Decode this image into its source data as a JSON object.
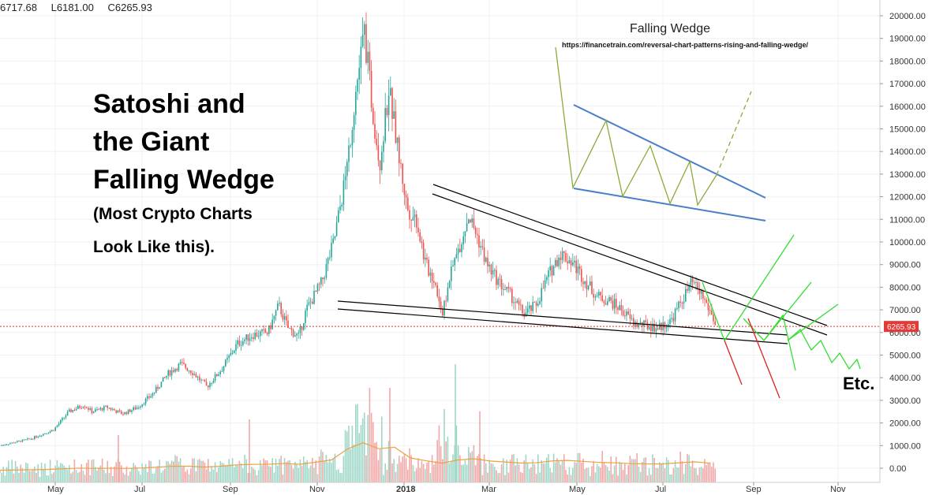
{
  "header": {
    "high": "6717.68",
    "low": "L6181.00",
    "close": "C6265.93"
  },
  "title": {
    "line1": "Satoshi and",
    "line2": "the Giant",
    "line3": "Falling Wedge",
    "sub1": "(Most Crypto Charts",
    "sub2": "Look Like this)."
  },
  "inset": {
    "title": "Falling Wedge",
    "url": "https://financetrain.com/reversal-chart-patterns-rising-and-falling-wedge/"
  },
  "annotation": {
    "etc": "Etc."
  },
  "price_label": "6265.93",
  "colors": {
    "up": "#26a69a",
    "down": "#ef5350",
    "price_line": "#e53935",
    "wedge_inset": "#4a7fc8",
    "zigzag": "#8aab3a",
    "projection_up": "#33dd33",
    "projection_down": "#dd2222",
    "trendline": "#000000",
    "volume_ma": "#f0a040"
  },
  "chart_data": {
    "type": "candlestick",
    "title": "",
    "xlabel": "",
    "ylabel": "",
    "ylim": [
      -500,
      20500
    ],
    "y_ticks": [
      "20000.00",
      "19000.00",
      "18000.00",
      "17000.00",
      "16000.00",
      "15000.00",
      "14000.00",
      "13000.00",
      "12000.00",
      "11000.00",
      "10000.00",
      "9000.00",
      "8000.00",
      "7000.00",
      "6000.00",
      "5000.00",
      "4000.00",
      "3000.00",
      "2000.00",
      "1000.00",
      "0.00"
    ],
    "x_ticks": [
      "May",
      "Jul",
      "Sep",
      "Nov",
      "2018",
      "Mar",
      "May",
      "Jul",
      "Sep",
      "Nov"
    ],
    "x_tick_bold": [
      false,
      false,
      false,
      false,
      true,
      false,
      false,
      false,
      false,
      false
    ],
    "timeline_days": [
      0,
      61,
      123,
      184,
      245,
      304,
      365,
      426,
      488,
      549
    ],
    "current_price": 6265.93,
    "price_path": [
      [
        0,
        1000
      ],
      [
        20,
        1300
      ],
      [
        35,
        1700
      ],
      [
        45,
        2500
      ],
      [
        55,
        2800
      ],
      [
        60,
        2500
      ],
      [
        70,
        2700
      ],
      [
        80,
        2400
      ],
      [
        90,
        2700
      ],
      [
        100,
        3300
      ],
      [
        110,
        4200
      ],
      [
        118,
        4600
      ],
      [
        125,
        4300
      ],
      [
        135,
        3600
      ],
      [
        145,
        4400
      ],
      [
        155,
        5500
      ],
      [
        165,
        5900
      ],
      [
        175,
        6000
      ],
      [
        182,
        7200
      ],
      [
        188,
        6200
      ],
      [
        195,
        5800
      ],
      [
        200,
        7000
      ],
      [
        210,
        8200
      ],
      [
        218,
        10000
      ],
      [
        226,
        13000
      ],
      [
        232,
        16500
      ],
      [
        238,
        19300
      ],
      [
        243,
        16000
      ],
      [
        248,
        13500
      ],
      [
        254,
        16800
      ],
      [
        260,
        14000
      ],
      [
        266,
        11500
      ],
      [
        272,
        11000
      ],
      [
        278,
        9000
      ],
      [
        284,
        8300
      ],
      [
        289,
        6800
      ],
      [
        294,
        8500
      ],
      [
        300,
        9800
      ],
      [
        306,
        11200
      ],
      [
        312,
        10200
      ],
      [
        318,
        9000
      ],
      [
        326,
        8200
      ],
      [
        334,
        7600
      ],
      [
        342,
        6800
      ],
      [
        350,
        7200
      ],
      [
        358,
        8500
      ],
      [
        366,
        9500
      ],
      [
        374,
        9100
      ],
      [
        382,
        8300
      ],
      [
        390,
        7600
      ],
      [
        398,
        7400
      ],
      [
        406,
        7000
      ],
      [
        414,
        6400
      ],
      [
        422,
        6300
      ],
      [
        430,
        6200
      ],
      [
        438,
        6500
      ],
      [
        446,
        7500
      ],
      [
        452,
        8200
      ],
      [
        458,
        7700
      ],
      [
        464,
        6900
      ],
      [
        468,
        6265.93
      ]
    ],
    "volume_scale_note": "Volume bars shown in lower panel",
    "annotations": [
      "Falling Wedge",
      "Etc."
    ]
  }
}
